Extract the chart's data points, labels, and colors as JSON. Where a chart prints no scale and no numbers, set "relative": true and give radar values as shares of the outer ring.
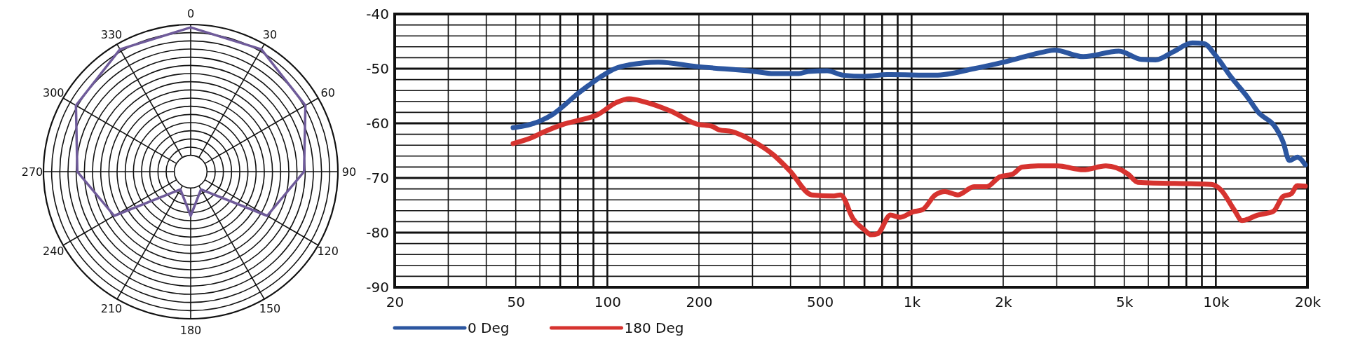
{
  "chart_data": [
    {
      "type": "radar",
      "relative": true,
      "grid": true,
      "categories": [
        "0",
        "30",
        "60",
        "90",
        "120",
        "150",
        "180",
        "210",
        "240",
        "270",
        "300",
        "330"
      ],
      "series": [
        {
          "color": "#6f5b9a",
          "values": [
            0.98,
            0.96,
            0.9,
            0.77,
            0.6,
            0.14,
            0.3,
            0.14,
            0.6,
            0.77,
            0.9,
            0.96
          ]
        }
      ]
    },
    {
      "type": "line",
      "log": "x",
      "grid": true,
      "legend": "bottom left",
      "marker": "none",
      "line_style": "solid",
      "xlim": [
        20,
        20000
      ],
      "ylim": [
        -90,
        -40
      ],
      "xticks": [
        20,
        50,
        100,
        200,
        500,
        {
          "value": 1000,
          "label": "1k"
        },
        {
          "value": 2000,
          "label": "2k"
        },
        {
          "value": 5000,
          "label": "5k"
        },
        {
          "value": 10000,
          "label": "10k"
        },
        {
          "value": 20000,
          "label": "20k"
        }
      ],
      "yticks": [
        -90,
        -80,
        -70,
        -60,
        -50,
        -40
      ],
      "series": [
        {
          "name": "0 Deg",
          "color": "#2c56a0",
          "x": [
            49,
            52,
            60,
            66,
            71.5,
            78.6,
            86.6,
            95,
            107,
            118,
            147,
            196,
            304,
            352,
            426,
            458,
            528,
            596,
            700,
            831,
            1197,
            1603,
            2045,
            2738,
            2946,
            3666,
            4795,
            5690,
            6340,
            7250,
            8370,
            9120,
            9950,
            11240,
            12700,
            13700,
            15850,
            16630,
            17440,
            18520,
            19680
          ],
          "values": [
            -60.8,
            -60.6,
            -59.6,
            -58.4,
            -56.9,
            -54.9,
            -53.1,
            -51.5,
            -49.9,
            -49.3,
            -48.8,
            -49.6,
            -50.5,
            -50.9,
            -50.9,
            -50.5,
            -50.4,
            -51.2,
            -51.4,
            -51.1,
            -51.2,
            -50,
            -48.7,
            -46.9,
            -46.6,
            -47.8,
            -46.8,
            -48.3,
            -48.4,
            -46.9,
            -45.3,
            -45.4,
            -47.5,
            -51.6,
            -55.2,
            -57.8,
            -61.1,
            -63.4,
            -66.8,
            -66.2,
            -67.6
          ]
        },
        {
          "name": "180 Deg",
          "color": "#d6332f",
          "x": [
            49,
            56,
            61.7,
            71.5,
            78.6,
            93,
            107,
            118,
            133,
            162,
            196,
            222,
            233,
            256,
            304,
            352,
            398,
            470,
            556,
            584,
            643,
            700,
            736,
            773,
            852,
            916,
            1010,
            1086,
            1197,
            1288,
            1420,
            1603,
            1766,
            1948,
            2147,
            2311,
            2605,
            3017,
            3666,
            4349,
            5150,
            5540,
            9670,
            10400,
            11480,
            12200,
            13700,
            15460,
            16630,
            17700,
            18520,
            19680
          ],
          "values": [
            -63.7,
            -62.7,
            -61.6,
            -60.2,
            -59.6,
            -58.4,
            -56.2,
            -55.5,
            -56.1,
            -57.8,
            -60.1,
            -60.6,
            -61.2,
            -61.5,
            -63.4,
            -65.8,
            -68.7,
            -73.1,
            -73.3,
            -73.1,
            -77.5,
            -79.5,
            -80.4,
            -80.2,
            -76.8,
            -77.2,
            -76.2,
            -75.8,
            -73.1,
            -72.5,
            -73.1,
            -71.6,
            -71.6,
            -69.8,
            -69.3,
            -68,
            -67.8,
            -67.8,
            -68.5,
            -67.8,
            -69.3,
            -70.8,
            -71.2,
            -72.2,
            -75.8,
            -77.8,
            -76.8,
            -76.1,
            -73.4,
            -72.9,
            -71.4,
            -71.5
          ]
        }
      ]
    }
  ]
}
